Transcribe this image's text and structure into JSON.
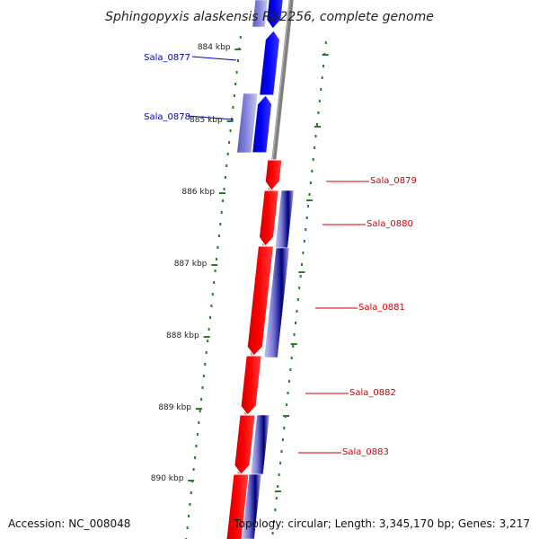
{
  "title": "Sphingopyxis alaskensis RB2256, complete genome",
  "footer": {
    "accession": "Accession: NC_008048",
    "stats": "Topology: circular; Length: 3,345,170 bp; Genes: 3,217"
  },
  "colors": {
    "forward": "#0000ff",
    "reverse": "#ff0000",
    "forward_label": "#0000bb",
    "reverse_label": "#cc0000",
    "backbone": "#808080",
    "tick": "#2a7a2a",
    "track_dark": "#00007a",
    "track_mid": "#6a6acc"
  },
  "kbp_ticks": [
    "884 kbp",
    "885 kbp",
    "886 kbp",
    "887 kbp",
    "888 kbp",
    "889 kbp",
    "890 kbp"
  ],
  "genes": [
    {
      "id": "Sala_0877",
      "strand": "forward"
    },
    {
      "id": "Sala_0878",
      "strand": "forward"
    },
    {
      "id": "Sala_0879",
      "strand": "reverse"
    },
    {
      "id": "Sala_0880",
      "strand": "reverse"
    },
    {
      "id": "Sala_0881",
      "strand": "reverse"
    },
    {
      "id": "Sala_0882",
      "strand": "reverse"
    },
    {
      "id": "Sala_0883",
      "strand": "reverse"
    }
  ]
}
